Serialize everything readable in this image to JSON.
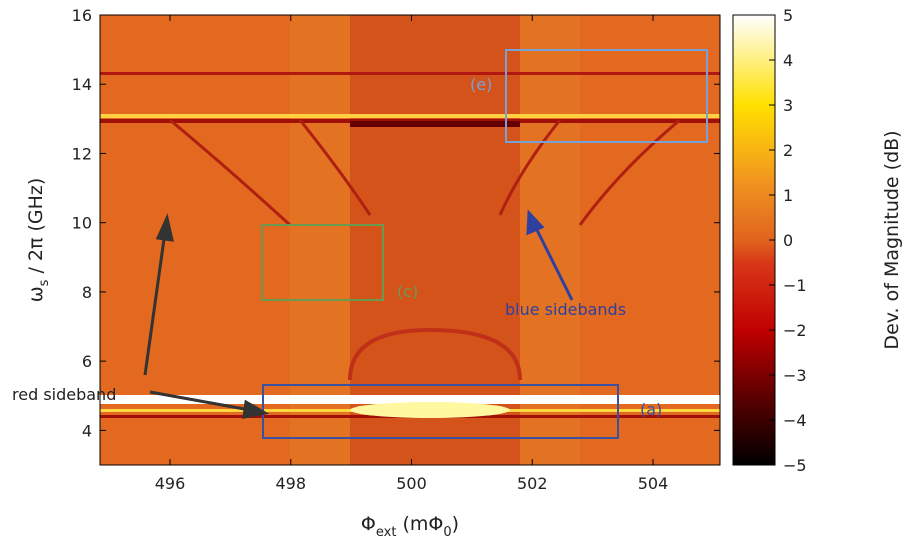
{
  "chart_data": {
    "type": "heatmap",
    "xlabel": {
      "main": "Φ",
      "sub": "ext",
      "rest": " (mΦ",
      "sub2": "0",
      "end": ")"
    },
    "ylabel": {
      "main": "ω",
      "sub": "s",
      "rest": " / 2π (GHz)"
    },
    "xlim": [
      494.84,
      505.11
    ],
    "xticks": [
      496,
      498,
      500,
      502,
      504
    ],
    "ylim": [
      3,
      16
    ],
    "yticks": [
      4,
      6,
      8,
      10,
      12,
      14,
      16
    ],
    "colorbar": {
      "label": "Dev. of Magnitude (dB)",
      "lim": [
        -5,
        5
      ],
      "ticks": [
        5,
        4,
        3,
        2,
        1,
        0,
        {
          "value": -1,
          "label": "−1"
        },
        {
          "value": -2,
          "label": "−2"
        },
        {
          "value": -3,
          "label": "−3"
        },
        {
          "value": -4,
          "label": "−4"
        },
        {
          "value": -5,
          "label": "−5"
        }
      ]
    },
    "annotations": [
      "(e)",
      "(c)",
      "(a)",
      "red sideband",
      "blue sidebands"
    ]
  }
}
